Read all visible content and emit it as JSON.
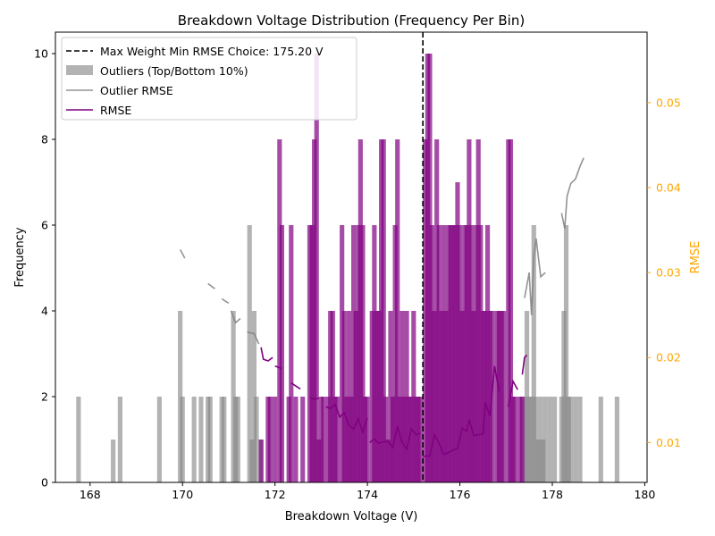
{
  "chart_data": {
    "type": "bar",
    "title": "Breakdown Voltage Distribution (Frequency Per Bin)",
    "xlabel": "Breakdown Voltage (V)",
    "ylabel": "Frequency",
    "y2label": "RMSE",
    "xlim": [
      167.25,
      180.05
    ],
    "ylim": [
      0,
      10.5
    ],
    "y2lim": [
      0.0053,
      0.0583
    ],
    "xticks": [
      "168",
      "170",
      "172",
      "174",
      "176",
      "178",
      "180"
    ],
    "yticks": [
      "0",
      "2",
      "4",
      "6",
      "8",
      "10"
    ],
    "y2ticks": [
      "0.01",
      "0.02",
      "0.03",
      "0.04",
      "0.05"
    ],
    "bin_width": 0.1,
    "colors": {
      "main": "#800080",
      "outlier": "#808080",
      "y2_axis": "#ffa500",
      "vline": "#000000"
    },
    "legend": {
      "position": "upper-left",
      "entries": [
        {
          "label": "Max Weight Min RMSE Choice: 175.20 V",
          "style": "dashed-line"
        },
        {
          "label": "Outliers (Top/Bottom 10%)",
          "style": "gray-patch"
        },
        {
          "label": "Outlier RMSE",
          "style": "gray-line"
        },
        {
          "label": "RMSE",
          "style": "purple-line"
        }
      ]
    },
    "vline": {
      "x": 175.2,
      "label": "Max Weight Min RMSE Choice: 175.20 V"
    },
    "outlier_bins": [
      {
        "x": 167.75,
        "y": 2
      },
      {
        "x": 168.5,
        "y": 1
      },
      {
        "x": 168.65,
        "y": 2
      },
      {
        "x": 169.5,
        "y": 2
      },
      {
        "x": 169.95,
        "y": 4
      },
      {
        "x": 170.0,
        "y": 2
      },
      {
        "x": 170.25,
        "y": 2
      },
      {
        "x": 170.4,
        "y": 2
      },
      {
        "x": 170.55,
        "y": 2
      },
      {
        "x": 170.6,
        "y": 2
      },
      {
        "x": 170.85,
        "y": 2
      },
      {
        "x": 170.9,
        "y": 2
      },
      {
        "x": 171.1,
        "y": 4
      },
      {
        "x": 171.15,
        "y": 2
      },
      {
        "x": 171.2,
        "y": 2
      },
      {
        "x": 171.45,
        "y": 6
      },
      {
        "x": 171.5,
        "y": 1
      },
      {
        "x": 171.55,
        "y": 4
      },
      {
        "x": 171.6,
        "y": 2
      },
      {
        "x": 171.7,
        "y": 1
      },
      {
        "x": 177.4,
        "y": 2
      },
      {
        "x": 177.45,
        "y": 4
      },
      {
        "x": 177.5,
        "y": 2
      },
      {
        "x": 177.55,
        "y": 2
      },
      {
        "x": 177.6,
        "y": 6
      },
      {
        "x": 177.65,
        "y": 2
      },
      {
        "x": 177.7,
        "y": 1
      },
      {
        "x": 177.75,
        "y": 2
      },
      {
        "x": 177.8,
        "y": 1
      },
      {
        "x": 177.85,
        "y": 2
      },
      {
        "x": 177.95,
        "y": 2
      },
      {
        "x": 178.05,
        "y": 2
      },
      {
        "x": 178.2,
        "y": 2
      },
      {
        "x": 178.25,
        "y": 4
      },
      {
        "x": 178.3,
        "y": 6
      },
      {
        "x": 178.35,
        "y": 2
      },
      {
        "x": 178.4,
        "y": 2
      },
      {
        "x": 178.5,
        "y": 2
      },
      {
        "x": 178.6,
        "y": 2
      },
      {
        "x": 179.05,
        "y": 2
      },
      {
        "x": 179.4,
        "y": 2
      }
    ],
    "main_bins": [
      {
        "x": 171.7,
        "y": 1
      },
      {
        "x": 171.85,
        "y": 2
      },
      {
        "x": 171.9,
        "y": 2
      },
      {
        "x": 172.0,
        "y": 2
      },
      {
        "x": 172.1,
        "y": 8
      },
      {
        "x": 172.15,
        "y": 6
      },
      {
        "x": 172.3,
        "y": 2
      },
      {
        "x": 172.35,
        "y": 6
      },
      {
        "x": 172.45,
        "y": 2
      },
      {
        "x": 172.6,
        "y": 2
      },
      {
        "x": 172.75,
        "y": 6
      },
      {
        "x": 172.8,
        "y": 6
      },
      {
        "x": 172.85,
        "y": 8
      },
      {
        "x": 172.9,
        "y": 10
      },
      {
        "x": 172.95,
        "y": 1
      },
      {
        "x": 173.0,
        "y": 2
      },
      {
        "x": 173.05,
        "y": 2
      },
      {
        "x": 173.15,
        "y": 2
      },
      {
        "x": 173.2,
        "y": 4
      },
      {
        "x": 173.25,
        "y": 4
      },
      {
        "x": 173.3,
        "y": 2
      },
      {
        "x": 173.35,
        "y": 2
      },
      {
        "x": 173.45,
        "y": 6
      },
      {
        "x": 173.5,
        "y": 4
      },
      {
        "x": 173.55,
        "y": 2
      },
      {
        "x": 173.6,
        "y": 4
      },
      {
        "x": 173.65,
        "y": 2
      },
      {
        "x": 173.7,
        "y": 6
      },
      {
        "x": 173.75,
        "y": 4
      },
      {
        "x": 173.8,
        "y": 6
      },
      {
        "x": 173.85,
        "y": 8
      },
      {
        "x": 173.9,
        "y": 6
      },
      {
        "x": 173.95,
        "y": 2
      },
      {
        "x": 174.0,
        "y": 2
      },
      {
        "x": 174.1,
        "y": 4
      },
      {
        "x": 174.15,
        "y": 6
      },
      {
        "x": 174.2,
        "y": 4
      },
      {
        "x": 174.25,
        "y": 4
      },
      {
        "x": 174.3,
        "y": 8
      },
      {
        "x": 174.35,
        "y": 8
      },
      {
        "x": 174.4,
        "y": 2
      },
      {
        "x": 174.45,
        "y": 1
      },
      {
        "x": 174.5,
        "y": 4
      },
      {
        "x": 174.55,
        "y": 2
      },
      {
        "x": 174.6,
        "y": 6
      },
      {
        "x": 174.65,
        "y": 8
      },
      {
        "x": 174.7,
        "y": 2
      },
      {
        "x": 174.75,
        "y": 4
      },
      {
        "x": 174.8,
        "y": 2
      },
      {
        "x": 174.85,
        "y": 4
      },
      {
        "x": 174.9,
        "y": 2
      },
      {
        "x": 174.95,
        "y": 2
      },
      {
        "x": 175.0,
        "y": 4
      },
      {
        "x": 175.05,
        "y": 2
      },
      {
        "x": 175.1,
        "y": 2
      },
      {
        "x": 175.15,
        "y": 2
      },
      {
        "x": 175.25,
        "y": 8
      },
      {
        "x": 175.3,
        "y": 10
      },
      {
        "x": 175.35,
        "y": 10
      },
      {
        "x": 175.4,
        "y": 6
      },
      {
        "x": 175.45,
        "y": 4
      },
      {
        "x": 175.5,
        "y": 8
      },
      {
        "x": 175.55,
        "y": 6
      },
      {
        "x": 175.6,
        "y": 4
      },
      {
        "x": 175.65,
        "y": 6
      },
      {
        "x": 175.7,
        "y": 4
      },
      {
        "x": 175.75,
        "y": 6
      },
      {
        "x": 175.8,
        "y": 6
      },
      {
        "x": 175.85,
        "y": 6
      },
      {
        "x": 175.9,
        "y": 6
      },
      {
        "x": 175.95,
        "y": 7
      },
      {
        "x": 176.0,
        "y": 6
      },
      {
        "x": 176.05,
        "y": 4
      },
      {
        "x": 176.1,
        "y": 6
      },
      {
        "x": 176.15,
        "y": 6
      },
      {
        "x": 176.2,
        "y": 8
      },
      {
        "x": 176.25,
        "y": 6
      },
      {
        "x": 176.3,
        "y": 4
      },
      {
        "x": 176.35,
        "y": 6
      },
      {
        "x": 176.4,
        "y": 8
      },
      {
        "x": 176.45,
        "y": 6
      },
      {
        "x": 176.5,
        "y": 4
      },
      {
        "x": 176.55,
        "y": 4
      },
      {
        "x": 176.6,
        "y": 6
      },
      {
        "x": 176.65,
        "y": 4
      },
      {
        "x": 176.7,
        "y": 4
      },
      {
        "x": 176.8,
        "y": 4
      },
      {
        "x": 176.85,
        "y": 4
      },
      {
        "x": 176.9,
        "y": 4
      },
      {
        "x": 176.95,
        "y": 4
      },
      {
        "x": 177.05,
        "y": 8
      },
      {
        "x": 177.1,
        "y": 8
      },
      {
        "x": 177.15,
        "y": 2
      },
      {
        "x": 177.2,
        "y": 2
      },
      {
        "x": 177.3,
        "y": 2
      },
      {
        "x": 177.35,
        "y": 2
      }
    ],
    "outlier_rmse_segments": [
      [
        [
          169.95,
          0.0327
        ],
        [
          170.05,
          0.0317
        ]
      ],
      [
        [
          170.55,
          0.0287
        ],
        [
          170.7,
          0.0281
        ]
      ],
      [
        [
          170.85,
          0.0269
        ],
        [
          171.0,
          0.0264
        ]
      ],
      [
        [
          171.05,
          0.0255
        ],
        [
          171.15,
          0.0241
        ],
        [
          171.25,
          0.0246
        ]
      ],
      [
        [
          171.4,
          0.023
        ],
        [
          171.55,
          0.0228
        ],
        [
          171.65,
          0.0216
        ]
      ],
      [
        [
          177.4,
          0.027
        ],
        [
          177.45,
          0.0285
        ],
        [
          177.5,
          0.03
        ],
        [
          177.55,
          0.025
        ],
        [
          177.6,
          0.032
        ],
        [
          177.65,
          0.034
        ],
        [
          177.75,
          0.0295
        ],
        [
          177.85,
          0.03
        ]
      ],
      [
        [
          178.2,
          0.037
        ],
        [
          178.27,
          0.0352
        ],
        [
          178.32,
          0.039
        ],
        [
          178.4,
          0.0405
        ],
        [
          178.5,
          0.041
        ],
        [
          178.6,
          0.0425
        ],
        [
          178.68,
          0.0435
        ]
      ]
    ],
    "rmse_segments": [
      [
        [
          171.7,
          0.0212
        ],
        [
          171.75,
          0.0198
        ],
        [
          171.85,
          0.0196
        ],
        [
          171.95,
          0.02
        ]
      ],
      [
        [
          172.0,
          0.019
        ],
        [
          172.15,
          0.0187
        ]
      ],
      [
        [
          172.35,
          0.017
        ],
        [
          172.55,
          0.0163
        ]
      ],
      [
        [
          172.75,
          0.0153
        ],
        [
          172.85,
          0.0151
        ],
        [
          172.95,
          0.0152
        ]
      ],
      [
        [
          173.1,
          0.0142
        ],
        [
          173.2,
          0.014
        ],
        [
          173.3,
          0.0145
        ],
        [
          173.4,
          0.013
        ],
        [
          173.5,
          0.0135
        ],
        [
          173.6,
          0.012
        ],
        [
          173.7,
          0.0116
        ],
        [
          173.8,
          0.0128
        ],
        [
          173.9,
          0.0112
        ],
        [
          174.0,
          0.0129
        ]
      ],
      [
        [
          174.05,
          0.01
        ],
        [
          174.15,
          0.0104
        ],
        [
          174.25,
          0.0099
        ],
        [
          174.35,
          0.0101
        ],
        [
          174.45,
          0.0101
        ],
        [
          174.55,
          0.0094
        ],
        [
          174.65,
          0.0119
        ],
        [
          174.75,
          0.01
        ],
        [
          174.85,
          0.0092
        ],
        [
          174.95,
          0.0116
        ],
        [
          175.05,
          0.0109
        ],
        [
          175.15,
          0.0111
        ]
      ],
      [
        [
          175.2,
          0.0083
        ],
        [
          175.25,
          0.0084
        ],
        [
          175.35,
          0.0084
        ],
        [
          175.45,
          0.0109
        ],
        [
          175.55,
          0.0099
        ],
        [
          175.65,
          0.0086
        ],
        [
          175.75,
          0.0088
        ],
        [
          175.85,
          0.0091
        ],
        [
          175.95,
          0.0093
        ],
        [
          176.05,
          0.0117
        ],
        [
          176.15,
          0.0113
        ],
        [
          176.2,
          0.0127
        ],
        [
          176.3,
          0.0108
        ],
        [
          176.4,
          0.0109
        ],
        [
          176.5,
          0.011
        ],
        [
          176.55,
          0.0147
        ],
        [
          176.65,
          0.0131
        ],
        [
          176.75,
          0.019
        ],
        [
          176.85,
          0.016
        ]
      ],
      [
        [
          177.05,
          0.0142
        ],
        [
          177.15,
          0.0172
        ],
        [
          177.25,
          0.0162
        ]
      ],
      [
        [
          177.35,
          0.018
        ],
        [
          177.4,
          0.02
        ],
        [
          177.45,
          0.0203
        ]
      ]
    ]
  }
}
